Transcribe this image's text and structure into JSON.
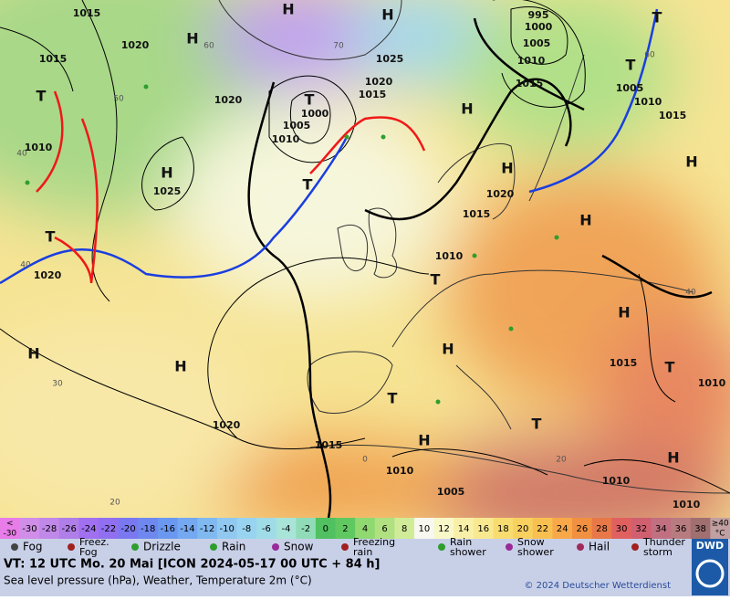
{
  "map": {
    "pressure_labels": [
      1015,
      1020,
      1015,
      1020,
      1010,
      1025,
      1020,
      1000,
      1005,
      1010,
      1015,
      1020,
      1025,
      995,
      1000,
      1005,
      1010,
      1015,
      1005,
      1010,
      1015,
      1020,
      1015,
      1010,
      1015,
      1010,
      1020,
      1015,
      1010,
      1005,
      1010,
      1010
    ],
    "centers": [
      "H",
      "H",
      "H",
      "H",
      "H",
      "H",
      "H",
      "H",
      "H",
      "H",
      "H",
      "H",
      "H",
      "H",
      "T",
      "T",
      "T",
      "T",
      "T",
      "T",
      "T",
      "T",
      "T",
      "T"
    ],
    "temperature_labels": [
      60,
      70,
      50,
      40,
      40,
      30,
      20,
      60,
      40,
      20,
      0
    ]
  },
  "scale": {
    "cells": [
      {
        "lines": [
          "<",
          "-30"
        ],
        "color": "#e87ce8"
      },
      {
        "label": "-30",
        "color": "#d08ee8"
      },
      {
        "label": "-28",
        "color": "#c088e8"
      },
      {
        "label": "-26",
        "color": "#b07ee8"
      },
      {
        "label": "-24",
        "color": "#a070f0"
      },
      {
        "label": "-22",
        "color": "#9070f0"
      },
      {
        "label": "-20",
        "color": "#7a78f0"
      },
      {
        "label": "-18",
        "color": "#6e88f0"
      },
      {
        "label": "-16",
        "color": "#6a98f0"
      },
      {
        "label": "-14",
        "color": "#74a8f0"
      },
      {
        "label": "-12",
        "color": "#80b8f0"
      },
      {
        "label": "-10",
        "color": "#90c8f0"
      },
      {
        "label": "-8",
        "color": "#98d4f0"
      },
      {
        "label": "-6",
        "color": "#a0dce8"
      },
      {
        "label": "-4",
        "color": "#a8e4d8"
      },
      {
        "label": "-2",
        "color": "#90dcb8"
      },
      {
        "label": "0",
        "color": "#50c060"
      },
      {
        "label": "2",
        "color": "#60c860"
      },
      {
        "label": "4",
        "color": "#90d870"
      },
      {
        "label": "6",
        "color": "#b0e080"
      },
      {
        "label": "8",
        "color": "#d0ec98"
      },
      {
        "label": "10",
        "color": "#f8f8f0"
      },
      {
        "label": "12",
        "color": "#f8f8c8"
      },
      {
        "label": "14",
        "color": "#f8f0a8"
      },
      {
        "label": "16",
        "color": "#f8e890"
      },
      {
        "label": "18",
        "color": "#f8dc70"
      },
      {
        "label": "20",
        "color": "#f8d060"
      },
      {
        "label": "22",
        "color": "#f8c050"
      },
      {
        "label": "24",
        "color": "#f8a848"
      },
      {
        "label": "26",
        "color": "#f09040"
      },
      {
        "label": "28",
        "color": "#e87848"
      },
      {
        "label": "30",
        "color": "#e06060"
      },
      {
        "label": "32",
        "color": "#d06070"
      },
      {
        "label": "34",
        "color": "#c07080"
      },
      {
        "label": "36",
        "color": "#b87c80"
      },
      {
        "label": "38",
        "color": "#a07070"
      },
      {
        "lines": [
          "≥40",
          "°C"
        ],
        "color": "#c0a0a0"
      }
    ]
  },
  "weather_legend": [
    {
      "lines": [
        "Fog"
      ]
    },
    {
      "lines": [
        "Freez.",
        "Fog"
      ]
    },
    {
      "lines": [
        "Drizzle"
      ]
    },
    {
      "lines": [
        "Rain"
      ]
    },
    {
      "lines": [
        "Snow"
      ]
    },
    {
      "lines": [
        "Freezing",
        "rain"
      ]
    },
    {
      "lines": [
        "Rain",
        "shower"
      ]
    },
    {
      "lines": [
        "Snow",
        "shower"
      ]
    },
    {
      "lines": [
        "Hail"
      ]
    },
    {
      "lines": [
        "Thunder",
        "storm"
      ]
    }
  ],
  "footer": {
    "valid_time": "VT: 12 UTC Mo.  20 Mai [ICON 2024-05-17  00 UTC + 84 h]",
    "description": "Sea level pressure (hPa), Weather, Temperature 2m (°C)",
    "copyright": "© 2024 Deutscher Wetterdienst",
    "logo": "DWD"
  }
}
